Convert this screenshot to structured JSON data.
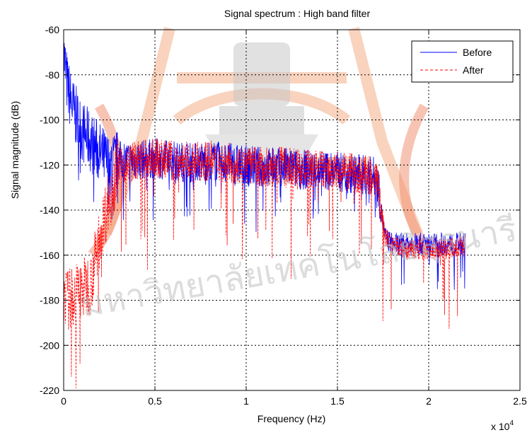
{
  "chart_data": {
    "type": "line",
    "title": "Signal spectrum : High band filter",
    "xlabel": "Frequency (Hz)",
    "ylabel": "Signal magnitude (dB)",
    "x_exponent_label": "x 10",
    "x_exponent_power": "4",
    "xlim": [
      0,
      2.5
    ],
    "ylim": [
      -220,
      -60
    ],
    "x_ticks": [
      0,
      0.5,
      1,
      1.5,
      2,
      2.5
    ],
    "x_tick_labels": [
      "0",
      "0.5",
      "1",
      "1.5",
      "2",
      "2.5"
    ],
    "y_ticks": [
      -220,
      -200,
      -180,
      -160,
      -140,
      -120,
      -100,
      -80,
      -60
    ],
    "y_tick_labels": [
      "-220",
      "-200",
      "-180",
      "-160",
      "-140",
      "-120",
      "-100",
      "-80",
      "-60"
    ],
    "grid": true,
    "legend_position": "top-right",
    "series": [
      {
        "name": "Before",
        "color": "#0000ff",
        "style": "solid",
        "x": [
          0,
          0.02,
          0.05,
          0.1,
          0.15,
          0.2,
          0.25,
          0.3,
          0.4,
          0.5,
          0.6,
          0.7,
          0.8,
          0.9,
          1.0,
          1.1,
          1.2,
          1.3,
          1.4,
          1.5,
          1.6,
          1.7,
          1.72,
          1.74,
          1.76,
          1.8,
          1.9,
          2.0,
          2.1,
          2.2
        ],
        "y": [
          -70,
          -85,
          -95,
          -105,
          -110,
          -115,
          -120,
          -118,
          -118,
          -117,
          -118,
          -119,
          -118,
          -119,
          -120,
          -121,
          -121,
          -122,
          -122,
          -123,
          -124,
          -125,
          -128,
          -140,
          -152,
          -155,
          -155,
          -155,
          -155,
          -155
        ]
      },
      {
        "name": "After",
        "color": "#ff0000",
        "style": "dashed",
        "x": [
          0,
          0.02,
          0.05,
          0.1,
          0.15,
          0.2,
          0.25,
          0.3,
          0.4,
          0.5,
          0.6,
          0.7,
          0.8,
          0.9,
          1.0,
          1.1,
          1.2,
          1.3,
          1.4,
          1.5,
          1.6,
          1.7,
          1.72,
          1.74,
          1.76,
          1.8,
          1.9,
          2.0,
          2.1,
          2.2
        ],
        "y": [
          -175,
          -180,
          -178,
          -175,
          -172,
          -150,
          -135,
          -120,
          -118,
          -117,
          -118,
          -119,
          -118,
          -119,
          -120,
          -121,
          -121,
          -122,
          -122,
          -123,
          -124,
          -125,
          -128,
          -140,
          -152,
          -156,
          -158,
          -157,
          -157,
          -156
        ]
      }
    ]
  },
  "watermark": {
    "text": "มหาวิทยาลัยเทคโนโลยีสุรนารี",
    "colors": {
      "orange": "#f5b08a",
      "gray": "#c8c8c8"
    }
  }
}
